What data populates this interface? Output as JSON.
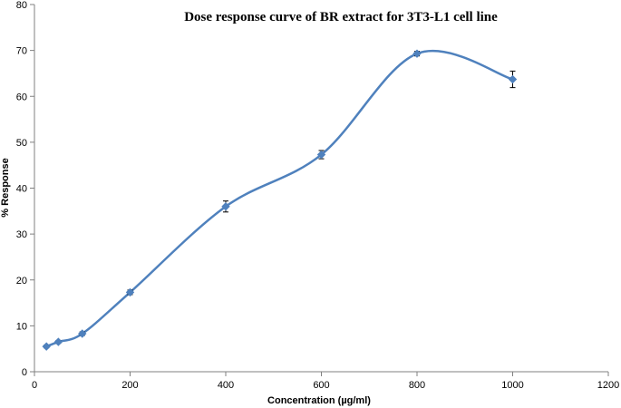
{
  "chart_data": {
    "type": "line",
    "title": "Dose response  curve of BR extract  for 3T3-L1 cell line",
    "xlabel": "Concentration (µg/ml)",
    "ylabel": "% Response",
    "xlim": [
      0,
      1200
    ],
    "ylim": [
      0,
      80
    ],
    "x_ticks": [
      0,
      200,
      400,
      600,
      800,
      1000,
      1200
    ],
    "y_ticks": [
      0,
      10,
      20,
      30,
      40,
      50,
      60,
      70,
      80
    ],
    "grid": false,
    "legend": "none",
    "marker": "diamond",
    "smooth": true,
    "color": "#4F81BD",
    "series": [
      {
        "x": [
          25,
          50,
          100,
          200,
          400,
          600,
          800,
          1000
        ],
        "values": [
          5.5,
          6.5,
          8.3,
          17.3,
          36.0,
          47.3,
          69.3,
          63.7
        ],
        "error": [
          0.3,
          0.3,
          0.4,
          0.5,
          1.2,
          0.9,
          0.5,
          1.8
        ]
      }
    ]
  }
}
